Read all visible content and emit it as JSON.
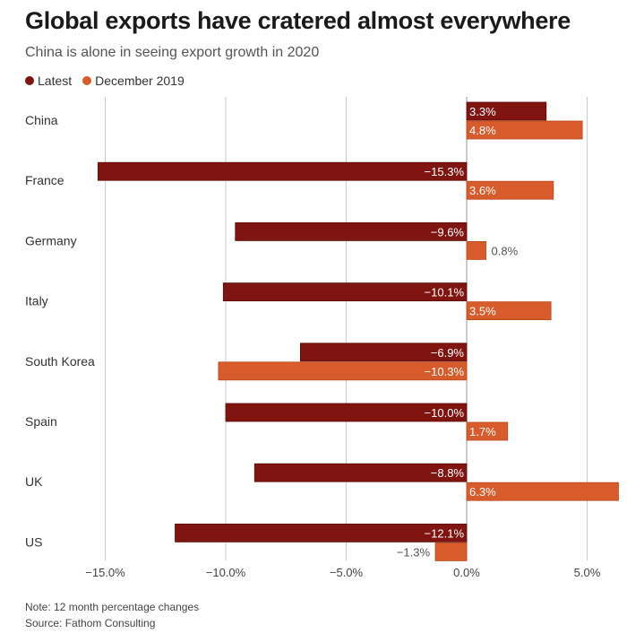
{
  "title": "Global exports have cratered almost everywhere",
  "subtitle": "China is alone in seeing export growth in 2020",
  "legend": [
    {
      "label": "Latest",
      "color": "#7f1411"
    },
    {
      "label": "December 2019",
      "color": "#d85c2b"
    }
  ],
  "notes": {
    "note": "Note: 12 month percentage changes",
    "source": "Source: Fathom Consulting"
  },
  "chart_data": {
    "type": "bar",
    "orientation": "horizontal",
    "categories": [
      "China",
      "France",
      "Germany",
      "Italy",
      "South Korea",
      "Spain",
      "UK",
      "US"
    ],
    "series": [
      {
        "name": "Latest",
        "color": "#7f1411",
        "values": [
          3.3,
          -15.3,
          -9.6,
          -10.1,
          -6.9,
          -10.0,
          -8.8,
          -12.1
        ],
        "labels": [
          "3.3%",
          "−15.3%",
          "−9.6%",
          "−10.1%",
          "−6.9%",
          "−10.0%",
          "−8.8%",
          "−12.1%"
        ]
      },
      {
        "name": "December 2019",
        "color": "#d85c2b",
        "values": [
          4.8,
          3.6,
          0.8,
          3.5,
          -10.3,
          1.7,
          6.3,
          -1.3
        ],
        "labels": [
          "4.8%",
          "3.6%",
          "0.8%",
          "3.5%",
          "−10.3%",
          "1.7%",
          "6.3%",
          "−1.3%"
        ]
      }
    ],
    "xlim": [
      -15.5,
      6.3
    ],
    "ticks": [
      -15,
      -10,
      -5,
      0,
      5
    ],
    "tick_labels": [
      "−15.0%",
      "−10.0%",
      "−5.0%",
      "0.0%",
      "5.0%"
    ],
    "grid": true,
    "legend_position": "top-left"
  }
}
